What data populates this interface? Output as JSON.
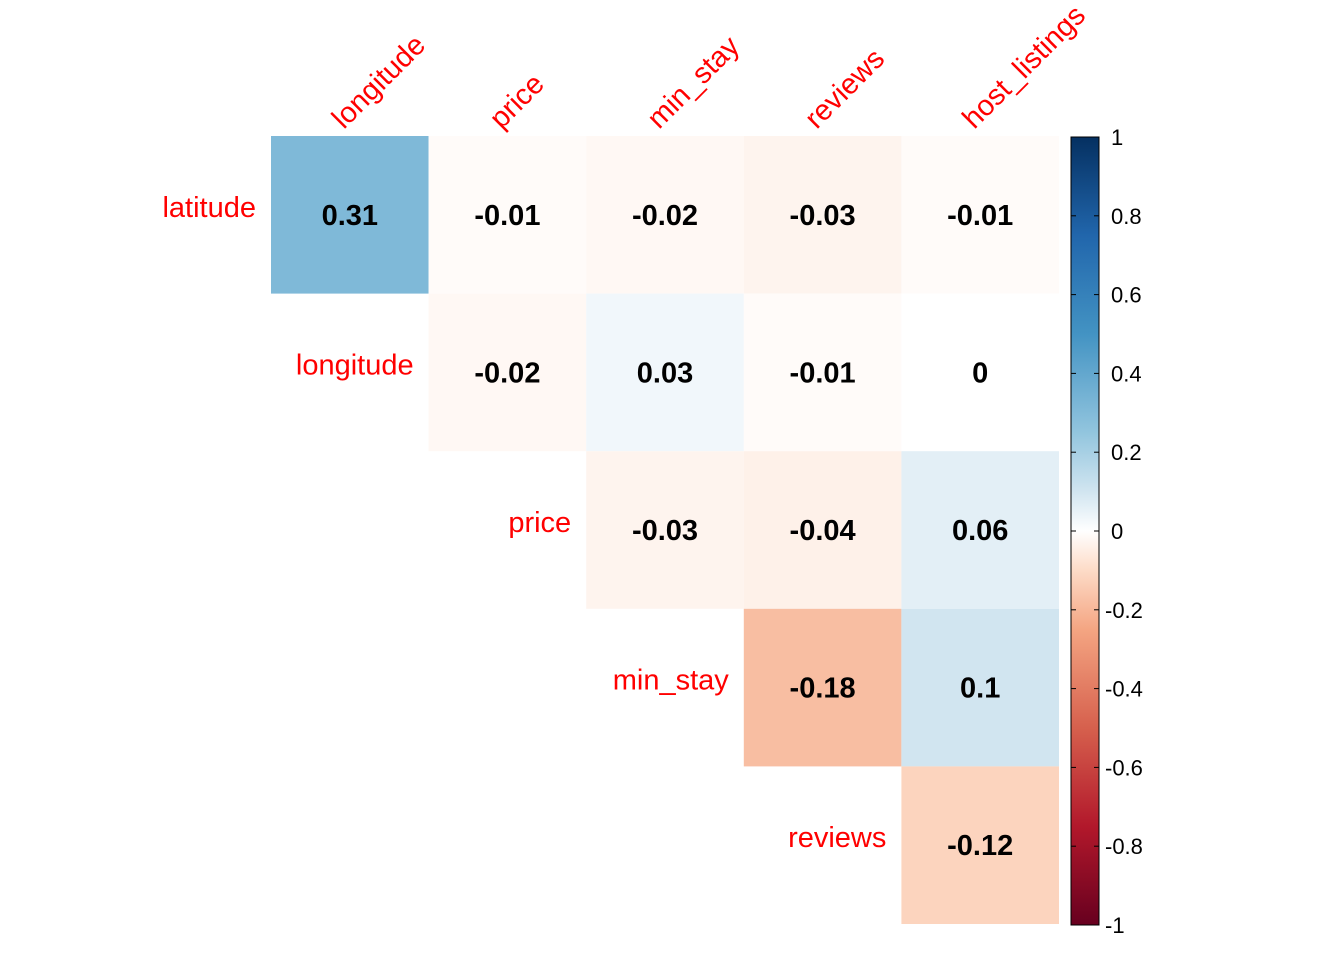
{
  "chart_data": {
    "type": "heatmap",
    "variant": "correlation-matrix-upper-triangle",
    "title": "",
    "rows": [
      "latitude",
      "longitude",
      "price",
      "min_stay",
      "reviews"
    ],
    "columns": [
      "longitude",
      "price",
      "min_stay",
      "reviews",
      "host_listings"
    ],
    "cells": [
      {
        "row": "latitude",
        "column": "longitude",
        "value": 0.31,
        "label": "0.31"
      },
      {
        "row": "latitude",
        "column": "price",
        "value": -0.01,
        "label": "-0.01"
      },
      {
        "row": "latitude",
        "column": "min_stay",
        "value": -0.02,
        "label": "-0.02"
      },
      {
        "row": "latitude",
        "column": "reviews",
        "value": -0.03,
        "label": "-0.03"
      },
      {
        "row": "latitude",
        "column": "host_listings",
        "value": -0.01,
        "label": "-0.01"
      },
      {
        "row": "longitude",
        "column": "price",
        "value": -0.02,
        "label": "-0.02"
      },
      {
        "row": "longitude",
        "column": "min_stay",
        "value": 0.03,
        "label": "0.03"
      },
      {
        "row": "longitude",
        "column": "reviews",
        "value": -0.01,
        "label": "-0.01"
      },
      {
        "row": "longitude",
        "column": "host_listings",
        "value": 0,
        "label": "0"
      },
      {
        "row": "price",
        "column": "min_stay",
        "value": -0.03,
        "label": "-0.03"
      },
      {
        "row": "price",
        "column": "reviews",
        "value": -0.04,
        "label": "-0.04"
      },
      {
        "row": "price",
        "column": "host_listings",
        "value": 0.06,
        "label": "0.06"
      },
      {
        "row": "min_stay",
        "column": "reviews",
        "value": -0.18,
        "label": "-0.18"
      },
      {
        "row": "min_stay",
        "column": "host_listings",
        "value": 0.1,
        "label": "0.1"
      },
      {
        "row": "reviews",
        "column": "host_listings",
        "value": -0.12,
        "label": "-0.12"
      }
    ],
    "color_scale": {
      "range": [
        -1,
        1
      ],
      "ticks": [
        "1",
        "0.8",
        "0.6",
        "0.4",
        "0.2",
        "0",
        "-0.2",
        "-0.4",
        "-0.6",
        "-0.8",
        "-1"
      ],
      "stops": [
        {
          "value": -1,
          "color": "#67001f"
        },
        {
          "value": -0.75,
          "color": "#b2182b"
        },
        {
          "value": -0.5,
          "color": "#d6604d"
        },
        {
          "value": -0.25,
          "color": "#f4a582"
        },
        {
          "value": -0.1,
          "color": "#fddbc7"
        },
        {
          "value": 0,
          "color": "#ffffff"
        },
        {
          "value": 0.1,
          "color": "#d1e5f0"
        },
        {
          "value": 0.25,
          "color": "#92c5de"
        },
        {
          "value": 0.5,
          "color": "#4393c3"
        },
        {
          "value": 0.75,
          "color": "#2166ac"
        },
        {
          "value": 1,
          "color": "#053061"
        }
      ]
    },
    "label_color": "#ff0000",
    "value_label_color": "#000000"
  }
}
